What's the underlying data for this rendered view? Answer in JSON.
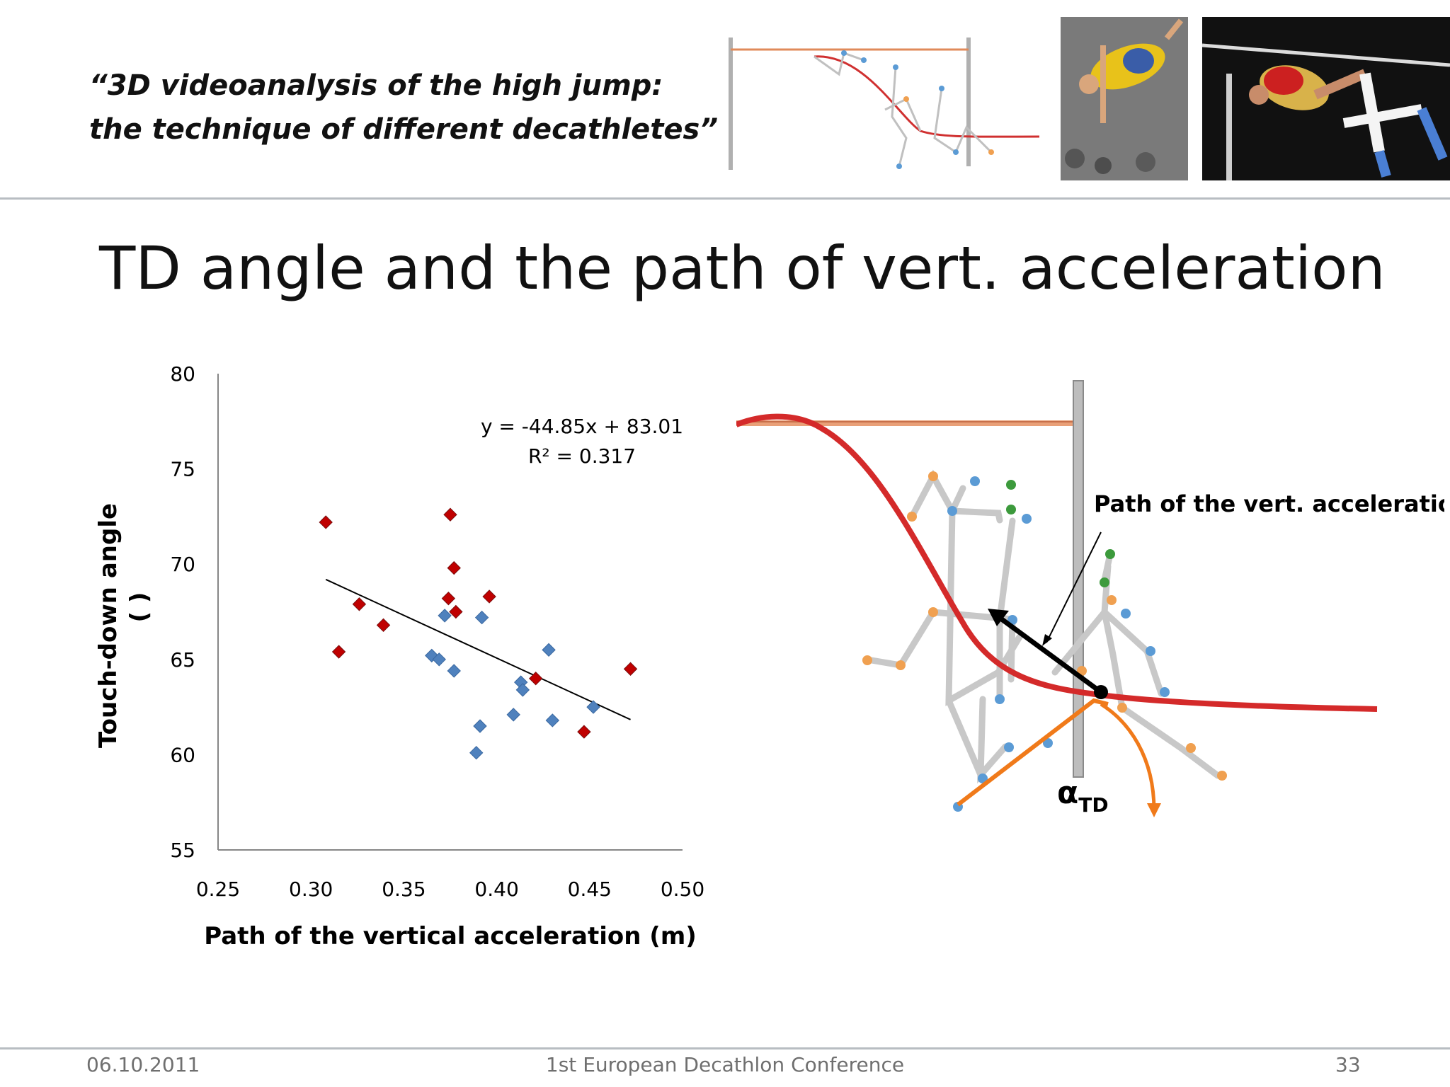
{
  "header": {
    "title_line1": "“3D videoanalysis of the high jump:",
    "title_line2": "the technique of different decathletes”"
  },
  "slide": {
    "title": "TD angle and the path of vert. acceleration"
  },
  "chart_data": {
    "type": "scatter",
    "xlabel": "Path of the vertical acceleration (m)",
    "ylabel": "Touch-down angle",
    "ylabel_unit": "( )",
    "xlim": [
      0.25,
      0.5
    ],
    "ylim": [
      55,
      80
    ],
    "xticks": [
      "0.25",
      "0.30",
      "0.35",
      "0.40",
      "0.45",
      "0.50"
    ],
    "yticks": [
      "55",
      "60",
      "65",
      "70",
      "75",
      "80"
    ],
    "grid": false,
    "series": [
      {
        "color": "#c00000",
        "marker": "diamond",
        "points": [
          [
            0.308,
            72.2
          ],
          [
            0.315,
            65.4
          ],
          [
            0.326,
            67.9
          ],
          [
            0.339,
            66.8
          ],
          [
            0.375,
            72.6
          ],
          [
            0.374,
            68.2
          ],
          [
            0.377,
            69.8
          ],
          [
            0.378,
            67.5
          ],
          [
            0.396,
            68.3
          ],
          [
            0.421,
            64.0
          ],
          [
            0.447,
            61.2
          ],
          [
            0.472,
            64.5
          ]
        ]
      },
      {
        "color": "#4f81bd",
        "marker": "diamond",
        "points": [
          [
            0.365,
            65.2
          ],
          [
            0.369,
            65.0
          ],
          [
            0.372,
            67.3
          ],
          [
            0.377,
            64.4
          ],
          [
            0.392,
            67.2
          ],
          [
            0.413,
            63.8
          ],
          [
            0.414,
            63.4
          ],
          [
            0.409,
            62.1
          ],
          [
            0.391,
            61.5
          ],
          [
            0.389,
            60.1
          ],
          [
            0.428,
            65.5
          ],
          [
            0.43,
            61.8
          ],
          [
            0.452,
            62.5
          ]
        ]
      }
    ],
    "trendline": {
      "slope": -44.85,
      "intercept": 83.01,
      "x_range": [
        0.308,
        0.472
      ],
      "equation": "y = -44.85x + 83.01",
      "r2": "R² = 0.317"
    }
  },
  "diagram": {
    "label_path": "Path of the vert. acceleration",
    "label_alpha": "α",
    "label_alpha_sub": "TD"
  },
  "footer": {
    "date": "06.10.2011",
    "conference": "1st European Decathlon Conference",
    "page": "33"
  }
}
